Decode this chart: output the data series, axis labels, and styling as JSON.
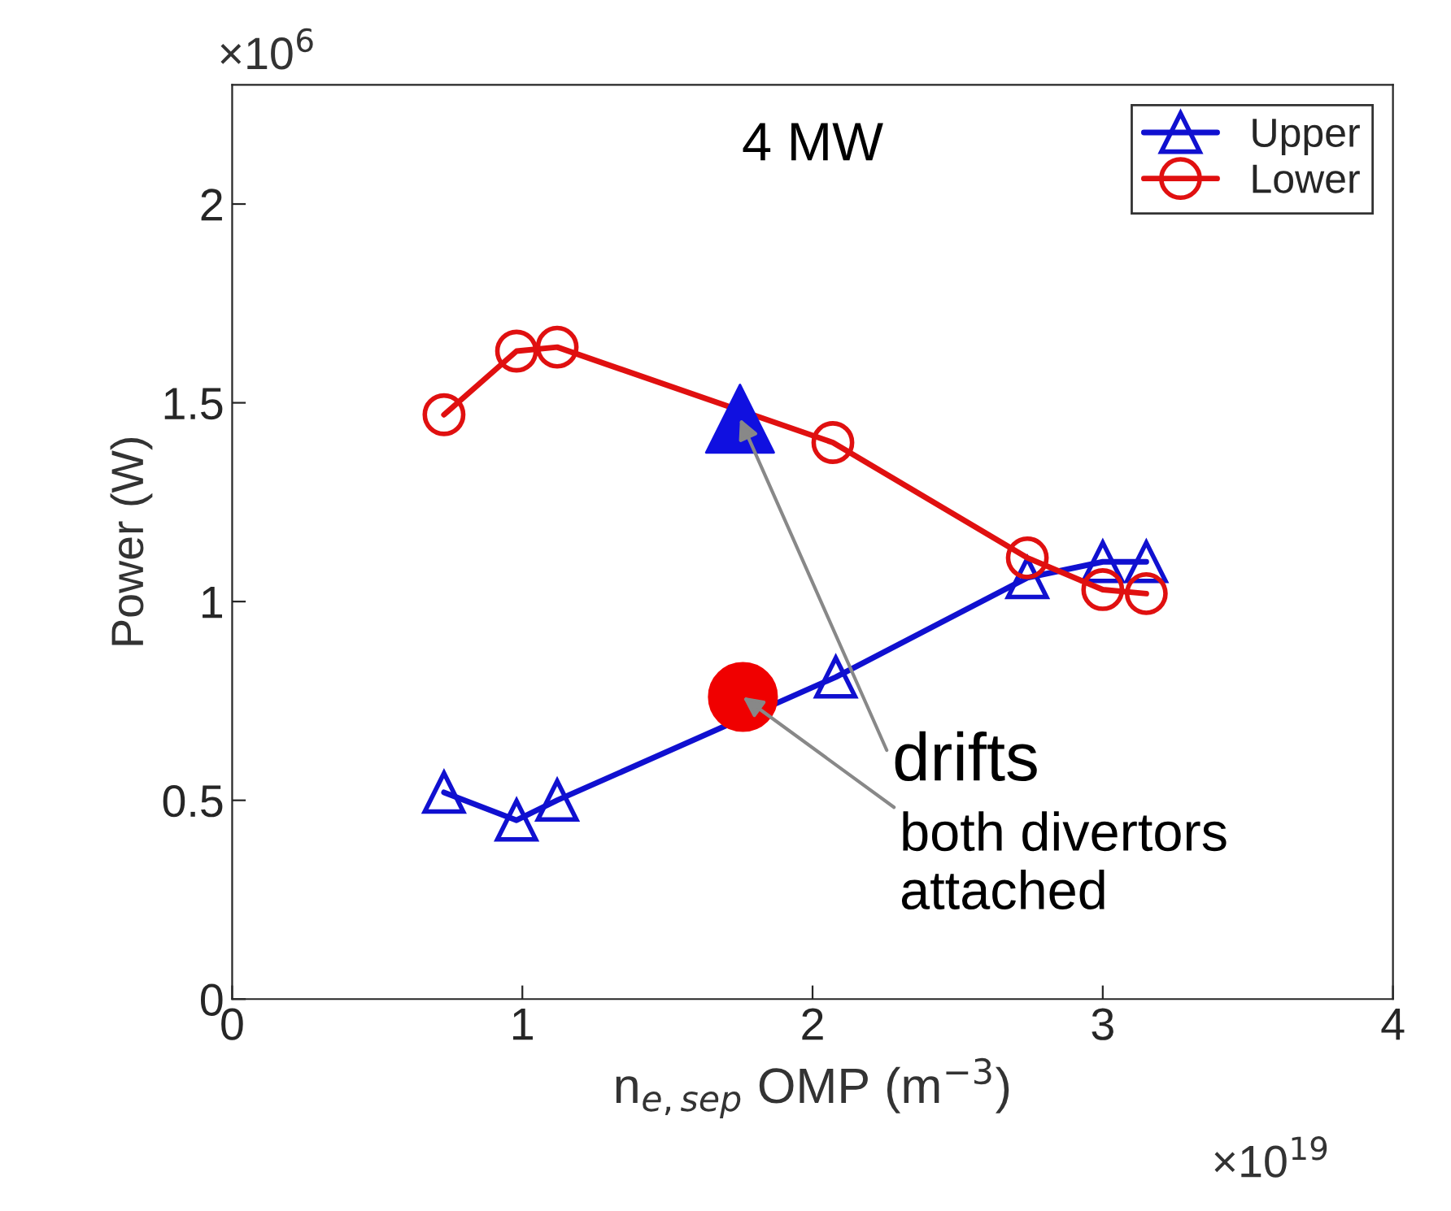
{
  "chart_data": {
    "type": "line",
    "xlabel": "n$_{e,sep}$ OMP (m$^{−3}$)",
    "ylabel": "Power (W)",
    "xlim": [
      0,
      4
    ],
    "ylim": [
      0,
      2.3
    ],
    "xticks": [
      0,
      1,
      2,
      3,
      4
    ],
    "yticks": [
      0,
      0.5,
      1,
      1.5,
      2
    ],
    "grid": false,
    "legend": "top right",
    "series": [
      {
        "name": "Upper",
        "color": "#1010d0",
        "marker": "triangle",
        "x": [
          0.73,
          0.98,
          1.12,
          2.08,
          2.74,
          3.0,
          3.15
        ],
        "values": [
          0.52,
          0.45,
          0.5,
          0.81,
          1.06,
          1.1,
          1.1
        ]
      },
      {
        "name": "Lower",
        "color": "#e01010",
        "marker": "circle",
        "x": [
          0.73,
          0.98,
          1.12,
          2.07,
          2.74,
          3.0,
          3.15
        ],
        "values": [
          1.47,
          1.63,
          1.64,
          1.4,
          1.11,
          1.03,
          1.02
        ]
      },
      {
        "type": "scatter",
        "color": "#1010e0",
        "marker": "triangle",
        "x": [
          1.75
        ],
        "values": [
          1.46
        ]
      },
      {
        "type": "scatter",
        "color": "#f00000",
        "marker": "circle",
        "x": [
          1.76
        ],
        "values": [
          0.76
        ]
      }
    ],
    "annotations": [
      "4 MW",
      {
        "text": "drifts",
        "x": 1.75,
        "y": 1.46
      },
      {
        "text": "both divertors\nattached",
        "x": 1.76,
        "y": 0.76
      },
      "×10$^{6}$",
      "×10$^{19}$"
    ]
  }
}
